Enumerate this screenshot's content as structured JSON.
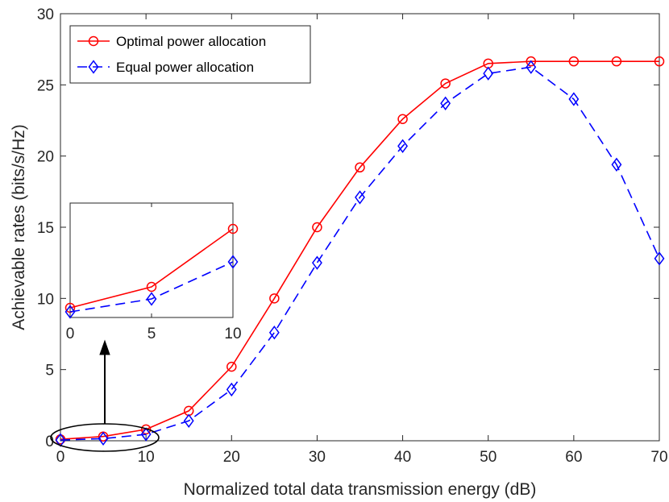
{
  "chart_data": {
    "type": "line",
    "title": "",
    "xlabel": "Normalized total data transmission energy (dB)",
    "ylabel": "Achievable rates (bits/s/Hz)",
    "xlim": [
      0,
      70
    ],
    "ylim": [
      0,
      30
    ],
    "xticks": [
      0,
      10,
      20,
      30,
      40,
      50,
      60,
      70
    ],
    "yticks": [
      0,
      5,
      10,
      15,
      20,
      25,
      30
    ],
    "grid": false,
    "legend_position": "top-left",
    "x": [
      0,
      5,
      10,
      15,
      20,
      25,
      30,
      35,
      40,
      45,
      50,
      55,
      60,
      65,
      70
    ],
    "series": [
      {
        "name": "Optimal power allocation",
        "color": "#ff0000",
        "line_style": "solid",
        "marker": "circle",
        "values": [
          0.1,
          0.3,
          0.8,
          2.1,
          5.2,
          10.0,
          15.0,
          19.2,
          22.6,
          25.1,
          26.5,
          26.65,
          26.65,
          26.65,
          26.65
        ]
      },
      {
        "name": "Equal power allocation",
        "color": "#0000ff",
        "line_style": "dashed",
        "marker": "diamond",
        "values": [
          0.05,
          0.15,
          0.45,
          1.4,
          3.6,
          7.6,
          12.5,
          17.1,
          20.7,
          23.7,
          25.8,
          26.25,
          24.0,
          19.4,
          12.8
        ]
      }
    ],
    "inset": {
      "xlim": [
        0,
        10
      ],
      "xticks": [
        0,
        5,
        10
      ],
      "x": [
        0,
        5,
        10
      ],
      "series_values": [
        [
          0.1,
          0.3,
          0.8
        ],
        [
          0.05,
          0.15,
          0.45
        ]
      ],
      "yticks": []
    }
  }
}
